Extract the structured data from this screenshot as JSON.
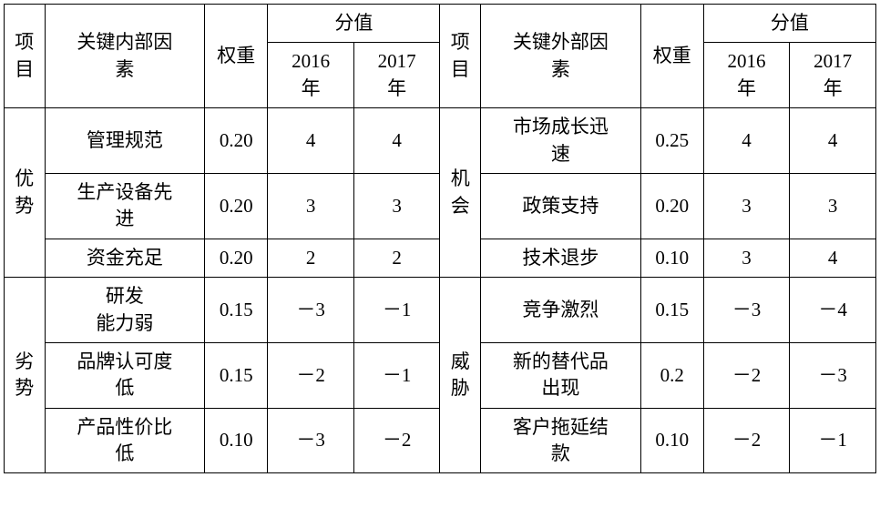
{
  "headers": {
    "project": "项\n目",
    "internal_factor": "关键内部因\n素",
    "external_factor": "关键外部因\n素",
    "weight": "权重",
    "score": "分值",
    "year_2016": "2016\n年",
    "year_2017": "2017\n年"
  },
  "categories": {
    "strength": "优\n势",
    "weakness": "劣\n势",
    "opportunity": "机\n会",
    "threat": "威\n胁"
  },
  "rows": [
    {
      "internal": {
        "factor": "管理规范",
        "weight": "0.20",
        "y2016": "4",
        "y2017": "4"
      },
      "external": {
        "factor": "市场成长迅\n速",
        "weight": "0.25",
        "y2016": "4",
        "y2017": "4"
      }
    },
    {
      "internal": {
        "factor": "生产设备先\n进",
        "weight": "0.20",
        "y2016": "3",
        "y2017": "3"
      },
      "external": {
        "factor": "政策支持",
        "weight": "0.20",
        "y2016": "3",
        "y2017": "3"
      }
    },
    {
      "internal": {
        "factor": "资金充足",
        "weight": "0.20",
        "y2016": "2",
        "y2017": "2"
      },
      "external": {
        "factor": "技术退步",
        "weight": "0.10",
        "y2016": "3",
        "y2017": "4"
      }
    },
    {
      "internal": {
        "factor": "研发\n能力弱",
        "weight": "0.15",
        "y2016": "－3",
        "y2017": "－1"
      },
      "external": {
        "factor": "竞争激烈",
        "weight": "0.15",
        "y2016": "－3",
        "y2017": "－4"
      }
    },
    {
      "internal": {
        "factor": "品牌认可度\n低",
        "weight": "0.15",
        "y2016": "－2",
        "y2017": "－1"
      },
      "external": {
        "factor": "新的替代品\n出现",
        "weight": "0.2",
        "y2016": "－2",
        "y2017": "－3"
      }
    },
    {
      "internal": {
        "factor": "产品性价比\n低",
        "weight": "0.10",
        "y2016": "－3",
        "y2017": "－2"
      },
      "external": {
        "factor": "客户拖延结\n款",
        "weight": "0.10",
        "y2016": "－2",
        "y2017": "－1"
      }
    }
  ]
}
